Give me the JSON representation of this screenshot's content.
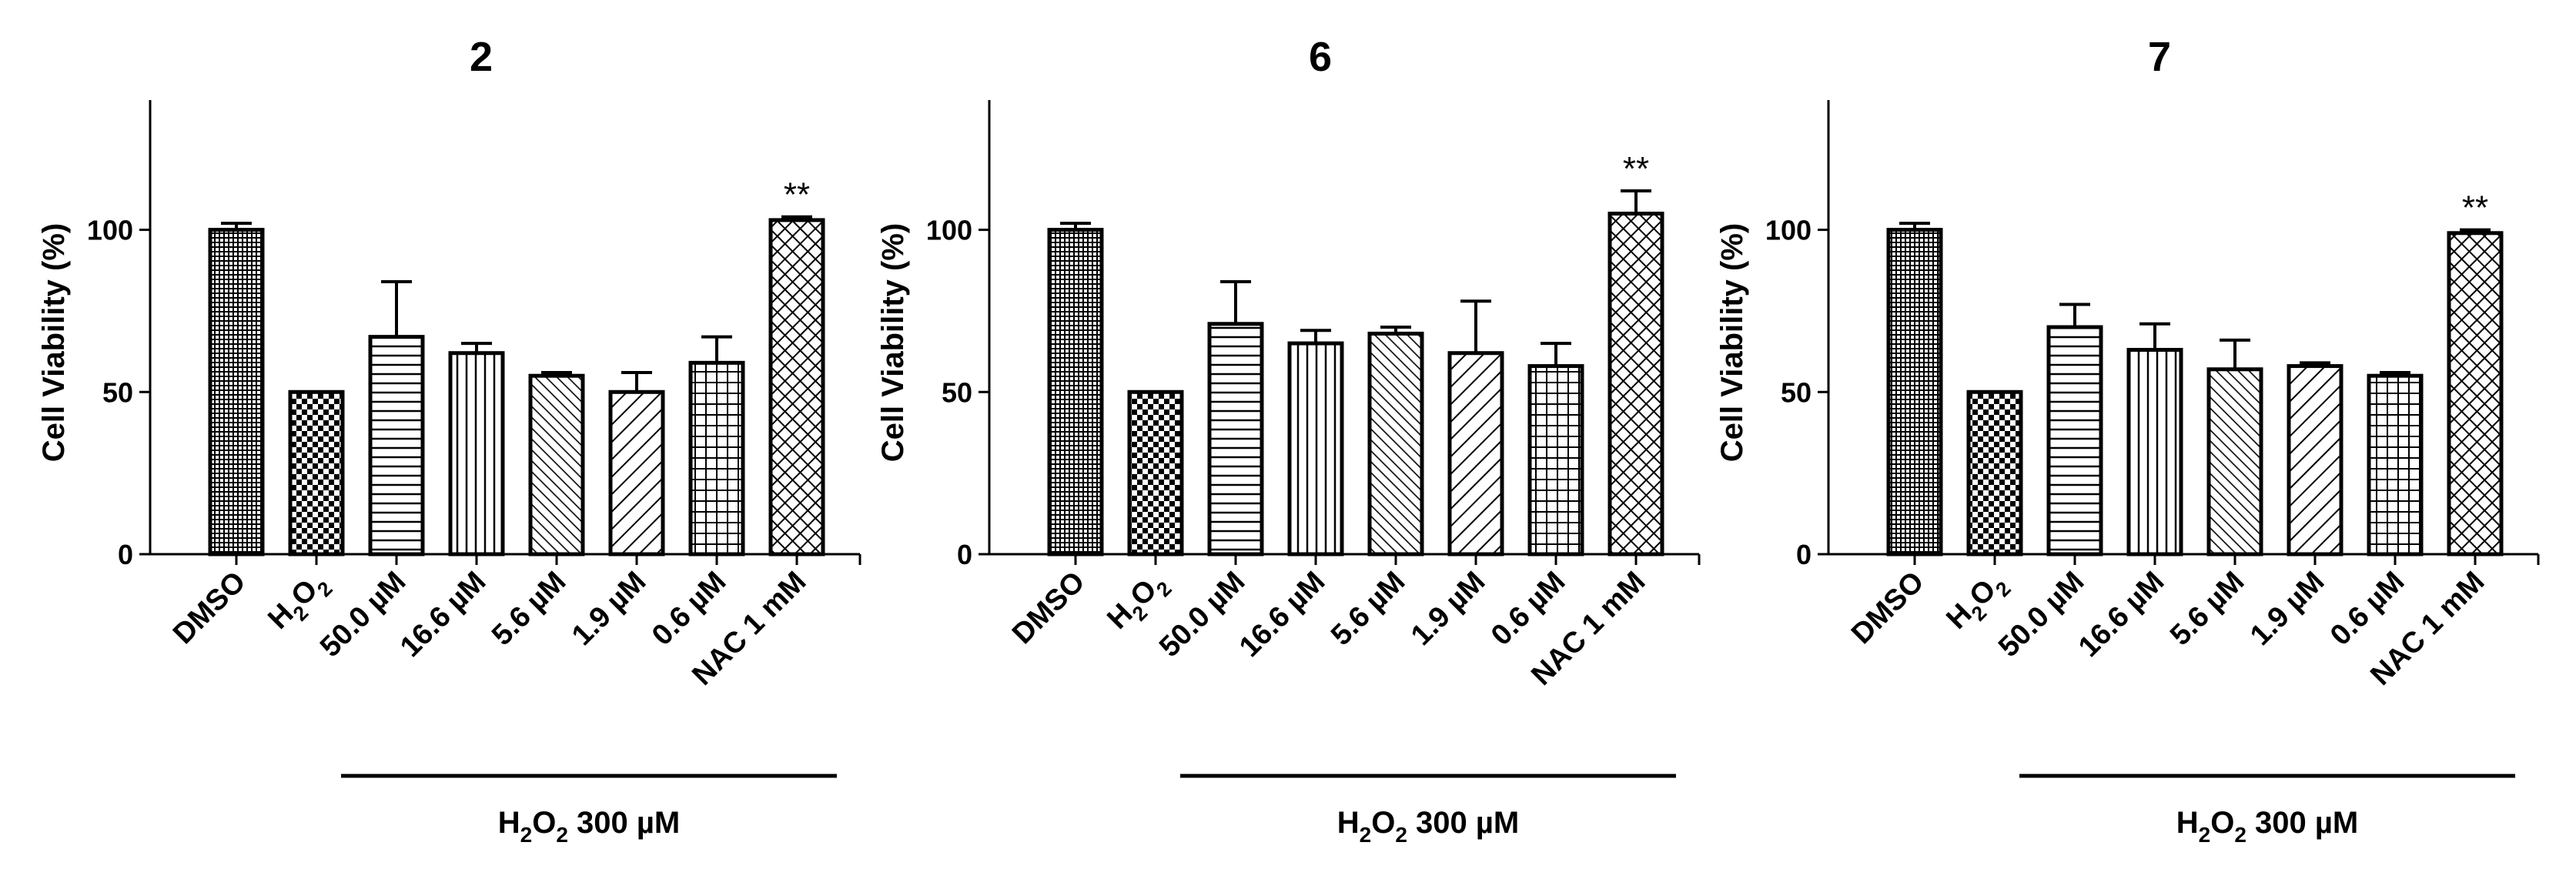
{
  "chart_data": [
    {
      "type": "bar",
      "title": "2",
      "xlabel": "",
      "ylabel": "Cell Viability (%)",
      "ylim": [
        0,
        140
      ],
      "yticks": [
        0,
        50,
        100
      ],
      "categories": [
        "DMSO",
        "H2O2",
        "50.0 µM",
        "16.6  µM",
        "5.6 µM",
        "1.9 µM",
        "0.6 µM",
        "NAC 1 mM"
      ],
      "values": [
        100,
        50,
        67,
        62,
        55,
        50,
        59,
        103
      ],
      "errors": [
        2,
        0,
        17,
        3,
        1,
        6,
        8,
        1
      ],
      "significance": [
        "",
        "",
        "",
        "",
        "",
        "",
        "",
        "**"
      ],
      "group_label": "H2O2 300 µM"
    },
    {
      "type": "bar",
      "title": "6",
      "xlabel": "",
      "ylabel": "Cell Viability (%)",
      "ylim": [
        0,
        140
      ],
      "yticks": [
        0,
        50,
        100
      ],
      "categories": [
        "DMSO",
        "H2O2",
        "50.0 µM",
        "16.6  µM",
        "5.6 µM",
        "1.9 µM",
        "0.6 µM",
        "NAC 1 mM"
      ],
      "values": [
        100,
        50,
        71,
        65,
        68,
        62,
        58,
        105
      ],
      "errors": [
        2,
        0,
        13,
        4,
        2,
        16,
        7,
        7
      ],
      "significance": [
        "",
        "",
        "",
        "",
        "",
        "",
        "",
        "**"
      ],
      "group_label": "H2O2 300 µM"
    },
    {
      "type": "bar",
      "title": "7",
      "xlabel": "",
      "ylabel": "Cell Viability (%)",
      "ylim": [
        0,
        140
      ],
      "yticks": [
        0,
        50,
        100
      ],
      "categories": [
        "DMSO",
        "H2O2",
        "50.0 µM",
        "16.6  µM",
        "5.6 µM",
        "1.9 µM",
        "0.6 µM",
        "NAC 1 mM"
      ],
      "values": [
        100,
        50,
        70,
        63,
        57,
        58,
        55,
        99
      ],
      "errors": [
        2,
        0,
        7,
        8,
        9,
        1,
        1,
        1
      ],
      "significance": [
        "",
        "",
        "",
        "",
        "",
        "",
        "",
        "**"
      ],
      "group_label": "H2O2 300 µM"
    }
  ],
  "colors": {
    "bar_stroke": "#000000",
    "bar_fill": "#ffffff",
    "axis": "#000000"
  },
  "patterns": [
    "dense-grid",
    "checker",
    "horizontal-lines",
    "vertical-lines",
    "diagonal-fine",
    "diagonal-coarse",
    "square-grid",
    "crosshatch"
  ]
}
